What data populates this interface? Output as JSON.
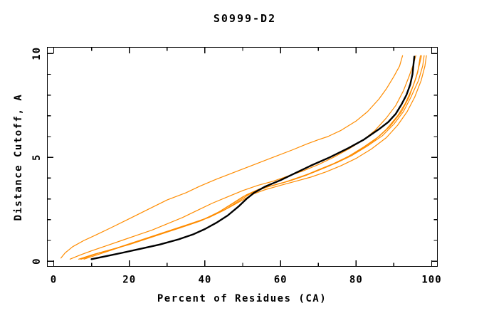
{
  "chart_data": {
    "type": "line",
    "title": "S0999-D2",
    "xlabel": "Percent of Residues (CA)",
    "ylabel": "Distance Cutoff, A",
    "xlim": [
      -1.7,
      101.5
    ],
    "ylim": [
      -0.25,
      10.3
    ],
    "x_major_ticks": [
      0,
      20,
      40,
      60,
      80,
      100
    ],
    "x_minor_ticks": [
      10,
      30,
      50,
      70,
      90
    ],
    "y_major_ticks": [
      0,
      5,
      10
    ],
    "y_minor_ticks": [
      1,
      2,
      3,
      4,
      6,
      7,
      8,
      9
    ],
    "grid": false,
    "legend": "none",
    "frame": "full-box-with-mirrored-inward-ticks",
    "colors": {
      "model_lines": "#ff8c00",
      "reference_line": "#000000",
      "axis": "#000000",
      "background": "#ffffff"
    },
    "series": [
      {
        "name": "orange-1",
        "color": "#ff8c00",
        "width": 1.2,
        "points": [
          [
            1.9,
            0.15
          ],
          [
            3,
            0.4
          ],
          [
            5,
            0.7
          ],
          [
            8,
            1.0
          ],
          [
            11,
            1.25
          ],
          [
            15,
            1.6
          ],
          [
            20,
            2.05
          ],
          [
            25,
            2.5
          ],
          [
            30,
            2.95
          ],
          [
            35,
            3.3
          ],
          [
            38.5,
            3.6
          ],
          [
            43,
            3.95
          ],
          [
            48,
            4.3
          ],
          [
            53,
            4.65
          ],
          [
            58,
            5.0
          ],
          [
            63,
            5.35
          ],
          [
            67,
            5.65
          ],
          [
            70,
            5.85
          ],
          [
            72.5,
            6.0
          ],
          [
            76,
            6.3
          ],
          [
            80,
            6.75
          ],
          [
            83,
            7.2
          ],
          [
            86,
            7.8
          ],
          [
            88,
            8.3
          ],
          [
            90,
            8.9
          ],
          [
            91.5,
            9.4
          ],
          [
            92.3,
            9.9
          ]
        ]
      },
      {
        "name": "orange-2",
        "color": "#ff8c00",
        "width": 1.2,
        "points": [
          [
            4.3,
            0.1
          ],
          [
            7,
            0.3
          ],
          [
            10,
            0.5
          ],
          [
            14,
            0.75
          ],
          [
            18,
            1.0
          ],
          [
            22,
            1.25
          ],
          [
            26,
            1.5
          ],
          [
            30,
            1.8
          ],
          [
            34,
            2.1
          ],
          [
            38,
            2.45
          ],
          [
            42,
            2.8
          ],
          [
            46,
            3.1
          ],
          [
            50,
            3.4
          ],
          [
            54,
            3.65
          ],
          [
            58,
            3.85
          ],
          [
            62,
            4.1
          ],
          [
            66,
            4.35
          ],
          [
            70,
            4.65
          ],
          [
            74,
            5.0
          ],
          [
            78,
            5.4
          ],
          [
            82,
            5.85
          ],
          [
            85,
            6.3
          ],
          [
            88,
            6.9
          ],
          [
            90.5,
            7.5
          ],
          [
            92.5,
            8.2
          ],
          [
            94,
            8.9
          ],
          [
            95.2,
            9.5
          ],
          [
            95.8,
            9.9
          ]
        ]
      },
      {
        "name": "orange-3",
        "color": "#ff8c00",
        "width": 1.2,
        "points": [
          [
            6.6,
            0.1
          ],
          [
            10,
            0.3
          ],
          [
            15,
            0.55
          ],
          [
            20,
            0.8
          ],
          [
            25,
            1.1
          ],
          [
            30,
            1.4
          ],
          [
            35,
            1.7
          ],
          [
            39,
            1.95
          ],
          [
            43,
            2.3
          ],
          [
            47,
            2.75
          ],
          [
            50,
            3.1
          ],
          [
            53,
            3.35
          ],
          [
            57,
            3.6
          ],
          [
            61,
            3.8
          ],
          [
            65,
            4.05
          ],
          [
            69,
            4.3
          ],
          [
            73,
            4.6
          ],
          [
            77,
            4.95
          ],
          [
            81,
            5.35
          ],
          [
            85,
            5.85
          ],
          [
            88,
            6.35
          ],
          [
            91,
            7.0
          ],
          [
            93,
            7.6
          ],
          [
            95,
            8.4
          ],
          [
            96.3,
            9.1
          ],
          [
            97,
            9.9
          ]
        ]
      },
      {
        "name": "orange-4",
        "color": "#ff8c00",
        "width": 1.2,
        "points": [
          [
            7,
            0.1
          ],
          [
            11,
            0.35
          ],
          [
            16,
            0.6
          ],
          [
            21,
            0.9
          ],
          [
            26,
            1.2
          ],
          [
            31,
            1.5
          ],
          [
            36,
            1.8
          ],
          [
            40,
            2.05
          ],
          [
            44,
            2.4
          ],
          [
            48,
            2.85
          ],
          [
            51,
            3.2
          ],
          [
            54,
            3.45
          ],
          [
            58,
            3.65
          ],
          [
            62,
            3.85
          ],
          [
            66,
            4.1
          ],
          [
            70,
            4.4
          ],
          [
            74,
            4.7
          ],
          [
            78,
            5.05
          ],
          [
            82,
            5.5
          ],
          [
            86,
            6.0
          ],
          [
            89,
            6.5
          ],
          [
            92,
            7.2
          ],
          [
            94,
            7.9
          ],
          [
            95.8,
            8.8
          ],
          [
            96.8,
            9.5
          ],
          [
            97.3,
            9.9
          ]
        ]
      },
      {
        "name": "orange-5",
        "color": "#ff8c00",
        "width": 1.2,
        "points": [
          [
            7.3,
            0.1
          ],
          [
            12,
            0.4
          ],
          [
            17,
            0.65
          ],
          [
            22,
            0.95
          ],
          [
            27,
            1.25
          ],
          [
            32,
            1.55
          ],
          [
            37,
            1.85
          ],
          [
            41,
            2.1
          ],
          [
            45,
            2.45
          ],
          [
            49,
            2.9
          ],
          [
            52,
            3.25
          ],
          [
            55,
            3.5
          ],
          [
            59,
            3.7
          ],
          [
            63,
            3.9
          ],
          [
            67,
            4.15
          ],
          [
            71,
            4.45
          ],
          [
            75,
            4.75
          ],
          [
            79,
            5.1
          ],
          [
            83,
            5.55
          ],
          [
            87,
            6.05
          ],
          [
            90,
            6.6
          ],
          [
            92.5,
            7.2
          ],
          [
            94.5,
            7.9
          ],
          [
            96.5,
            8.7
          ],
          [
            97.6,
            9.4
          ],
          [
            98,
            9.9
          ]
        ]
      },
      {
        "name": "orange-6",
        "color": "#ff8c00",
        "width": 1.2,
        "points": [
          [
            8,
            0.1
          ],
          [
            13,
            0.4
          ],
          [
            18,
            0.7
          ],
          [
            23,
            1.0
          ],
          [
            28,
            1.3
          ],
          [
            33,
            1.6
          ],
          [
            38,
            1.9
          ],
          [
            42,
            2.2
          ],
          [
            46,
            2.55
          ],
          [
            50,
            2.95
          ],
          [
            53,
            3.25
          ],
          [
            56,
            3.45
          ],
          [
            60,
            3.65
          ],
          [
            64,
            3.85
          ],
          [
            68,
            4.05
          ],
          [
            72,
            4.3
          ],
          [
            76,
            4.6
          ],
          [
            80,
            4.95
          ],
          [
            84,
            5.4
          ],
          [
            88,
            5.95
          ],
          [
            91,
            6.55
          ],
          [
            93.5,
            7.2
          ],
          [
            95.5,
            7.9
          ],
          [
            97.2,
            8.7
          ],
          [
            98.2,
            9.4
          ],
          [
            98.6,
            9.9
          ]
        ]
      },
      {
        "name": "black",
        "color": "#000000",
        "width": 2.4,
        "points": [
          [
            10,
            0.1
          ],
          [
            14,
            0.25
          ],
          [
            18,
            0.4
          ],
          [
            23,
            0.6
          ],
          [
            28,
            0.8
          ],
          [
            33,
            1.05
          ],
          [
            37,
            1.3
          ],
          [
            40,
            1.55
          ],
          [
            43,
            1.85
          ],
          [
            46,
            2.2
          ],
          [
            49,
            2.65
          ],
          [
            51,
            3.0
          ],
          [
            53,
            3.3
          ],
          [
            56,
            3.6
          ],
          [
            60,
            3.9
          ],
          [
            64,
            4.25
          ],
          [
            68,
            4.6
          ],
          [
            73,
            5.0
          ],
          [
            78,
            5.45
          ],
          [
            82,
            5.85
          ],
          [
            86,
            6.35
          ],
          [
            88.5,
            6.7
          ],
          [
            90.5,
            7.1
          ],
          [
            92,
            7.55
          ],
          [
            93.3,
            8.0
          ],
          [
            94.3,
            8.5
          ],
          [
            94.9,
            9.0
          ],
          [
            95.2,
            9.5
          ],
          [
            95.4,
            9.85
          ]
        ]
      }
    ]
  }
}
